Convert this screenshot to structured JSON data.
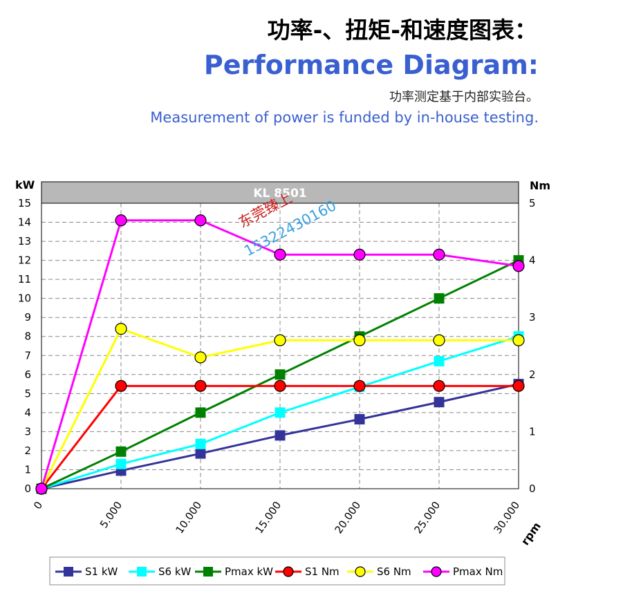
{
  "header": {
    "title_cn": "功率-、扭矩-和速度图表：",
    "title_en": "Performance Diagram:",
    "subtitle_cn": "功率测定基于内部实验台。",
    "subtitle_en": "Measurement of power is funded by in-house testing."
  },
  "watermark": {
    "line1": "东莞臻上",
    "line2": "15322430160"
  },
  "chart_data": {
    "type": "line",
    "title": "KL 8501",
    "x": [
      0,
      5000,
      10000,
      15000,
      20000,
      25000,
      30000
    ],
    "x_tick_labels": [
      "0",
      "5.000",
      "10.000",
      "15.000",
      "20.000",
      "25.000",
      "30.000"
    ],
    "xlabel": "rpm",
    "xlim": [
      0,
      30000
    ],
    "ylabel_left": "kW",
    "ylim_left": [
      0,
      15
    ],
    "y_ticks_left": [
      "0",
      "1",
      "2",
      "3",
      "4",
      "5",
      "6",
      "7",
      "8",
      "9",
      "10",
      "11",
      "12",
      "13",
      "14",
      "15"
    ],
    "ylabel_right": "Nm",
    "ylim_right": [
      0,
      5
    ],
    "y_ticks_right": [
      "0",
      "1",
      "2",
      "3",
      "4",
      "5"
    ],
    "grid": true,
    "legend_position": "bottom",
    "series": [
      {
        "name": "S1 kW",
        "axis": "left",
        "marker": "square",
        "color": "#333399",
        "values": [
          0,
          0.95,
          1.85,
          2.8,
          3.65,
          4.55,
          5.5
        ]
      },
      {
        "name": "S6 kW",
        "axis": "left",
        "marker": "square",
        "color": "#00ffff",
        "values": [
          0,
          1.3,
          2.35,
          4.0,
          5.35,
          6.7,
          8.0
        ]
      },
      {
        "name": "Pmax kW",
        "axis": "left",
        "marker": "square",
        "color": "#008000",
        "values": [
          0,
          1.95,
          4.0,
          6.0,
          8.0,
          10.0,
          12.0
        ]
      },
      {
        "name": "S1 Nm",
        "axis": "right",
        "marker": "circle",
        "color": "#ff0000",
        "values": [
          0,
          1.8,
          1.8,
          1.8,
          1.8,
          1.8,
          1.8
        ]
      },
      {
        "name": "S6 Nm",
        "axis": "right",
        "marker": "circle",
        "color": "#ffff00",
        "values": [
          0,
          2.8,
          2.3,
          2.6,
          2.6,
          2.6,
          2.6
        ]
      },
      {
        "name": "Pmax Nm",
        "axis": "right",
        "marker": "circle",
        "color": "#ff00ff",
        "values": [
          0,
          4.7,
          4.7,
          4.1,
          4.1,
          4.1,
          3.9
        ]
      }
    ]
  }
}
